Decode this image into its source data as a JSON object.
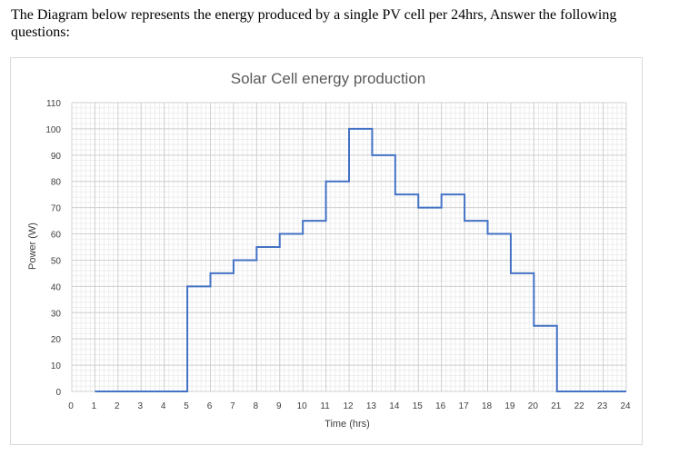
{
  "question": "The Diagram below represents the energy produced by a single PV cell per 24hrs, Answer the following questions:",
  "chart_data": {
    "type": "line",
    "style": "step",
    "title": "Solar Cell energy production",
    "xlabel": "Time (hrs)",
    "ylabel": "Power (W)",
    "xlim": [
      0,
      24
    ],
    "ylim": [
      0,
      110
    ],
    "x_ticks": [
      0,
      1,
      2,
      3,
      4,
      5,
      6,
      7,
      8,
      9,
      10,
      11,
      12,
      13,
      14,
      15,
      16,
      17,
      18,
      19,
      20,
      21,
      22,
      23,
      24
    ],
    "y_ticks": [
      0,
      10,
      20,
      30,
      40,
      50,
      60,
      70,
      80,
      90,
      100,
      110
    ],
    "grid": true,
    "legend": "none",
    "line_color": "#4472c4",
    "x": [
      1,
      2,
      3,
      4,
      5,
      6,
      7,
      8,
      9,
      10,
      11,
      12,
      13,
      14,
      15,
      16,
      17,
      18,
      19,
      20,
      21,
      22,
      23
    ],
    "y": [
      0,
      0,
      0,
      0,
      40,
      45,
      50,
      55,
      60,
      65,
      80,
      100,
      90,
      75,
      70,
      75,
      65,
      60,
      45,
      25,
      0,
      0,
      0
    ],
    "x_end": 24
  }
}
